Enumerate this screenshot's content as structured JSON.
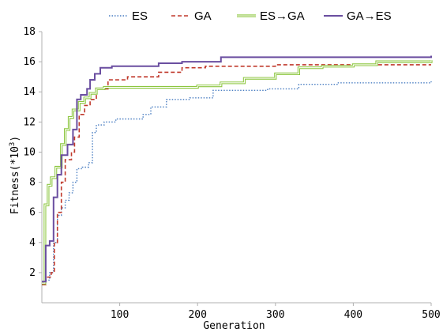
{
  "chart_data": {
    "type": "line",
    "title": "",
    "xlabel": "Generation",
    "ylabel_main": "Fitness(*10",
    "ylabel_sup": "3",
    "ylabel_close": ")",
    "xlim": [
      0,
      500
    ],
    "ylim": [
      0,
      18
    ],
    "xticks": [
      100,
      200,
      300,
      400,
      500
    ],
    "xtick_labels": [
      "100",
      "200",
      "300",
      "400",
      "500"
    ],
    "yticks": [
      2,
      4,
      6,
      8,
      10,
      12,
      14,
      16,
      18
    ],
    "ytick_labels": [
      "2",
      "4",
      "6",
      "8",
      "10",
      "12",
      "14",
      "16",
      "18"
    ],
    "grid": false,
    "legend_position": "top",
    "series": [
      {
        "name": "ES",
        "color": "#4a7ec2",
        "dash": "dotted",
        "points": [
          [
            0,
            1.2
          ],
          [
            5,
            1.5
          ],
          [
            10,
            2.0
          ],
          [
            15,
            4.0
          ],
          [
            20,
            5.8
          ],
          [
            25,
            6.3
          ],
          [
            30,
            6.8
          ],
          [
            35,
            7.3
          ],
          [
            40,
            8.0
          ],
          [
            45,
            8.9
          ],
          [
            52,
            9.0
          ],
          [
            60,
            9.3
          ],
          [
            65,
            11.3
          ],
          [
            70,
            11.8
          ],
          [
            80,
            12.0
          ],
          [
            95,
            12.2
          ],
          [
            130,
            12.5
          ],
          [
            140,
            13.0
          ],
          [
            160,
            13.5
          ],
          [
            190,
            13.6
          ],
          [
            220,
            14.1
          ],
          [
            290,
            14.2
          ],
          [
            330,
            14.5
          ],
          [
            380,
            14.6
          ],
          [
            500,
            14.7
          ]
        ]
      },
      {
        "name": "GA",
        "color": "#c0392b",
        "dash": "dashed",
        "points": [
          [
            0,
            1.2
          ],
          [
            5,
            1.7
          ],
          [
            12,
            2.0
          ],
          [
            16,
            4.0
          ],
          [
            20,
            6.0
          ],
          [
            25,
            8.0
          ],
          [
            30,
            9.5
          ],
          [
            38,
            10.0
          ],
          [
            42,
            11.0
          ],
          [
            48,
            12.5
          ],
          [
            55,
            13.1
          ],
          [
            62,
            13.5
          ],
          [
            70,
            14.2
          ],
          [
            85,
            14.8
          ],
          [
            110,
            15.0
          ],
          [
            150,
            15.3
          ],
          [
            180,
            15.6
          ],
          [
            210,
            15.7
          ],
          [
            300,
            15.8
          ],
          [
            500,
            15.8
          ]
        ]
      },
      {
        "name": "ES→GA",
        "color": "#8cc63f",
        "dash": "double",
        "points": [
          [
            0,
            1.3
          ],
          [
            4,
            6.5
          ],
          [
            8,
            7.8
          ],
          [
            12,
            8.3
          ],
          [
            18,
            9.0
          ],
          [
            25,
            10.5
          ],
          [
            30,
            11.5
          ],
          [
            35,
            12.3
          ],
          [
            40,
            12.8
          ],
          [
            48,
            13.3
          ],
          [
            55,
            13.6
          ],
          [
            62,
            13.9
          ],
          [
            70,
            14.2
          ],
          [
            80,
            14.3
          ],
          [
            150,
            14.3
          ],
          [
            200,
            14.4
          ],
          [
            230,
            14.6
          ],
          [
            260,
            14.9
          ],
          [
            300,
            15.2
          ],
          [
            330,
            15.6
          ],
          [
            360,
            15.7
          ],
          [
            400,
            15.8
          ],
          [
            430,
            16.0
          ],
          [
            500,
            16.1
          ]
        ]
      },
      {
        "name": "GA→ES",
        "color": "#6a4ea0",
        "dash": "solid",
        "points": [
          [
            0,
            1.4
          ],
          [
            5,
            3.8
          ],
          [
            10,
            4.1
          ],
          [
            15,
            7.0
          ],
          [
            20,
            8.5
          ],
          [
            25,
            9.8
          ],
          [
            33,
            10.5
          ],
          [
            40,
            11.5
          ],
          [
            45,
            13.5
          ],
          [
            50,
            13.8
          ],
          [
            58,
            14.2
          ],
          [
            62,
            14.8
          ],
          [
            68,
            15.2
          ],
          [
            75,
            15.6
          ],
          [
            90,
            15.7
          ],
          [
            150,
            15.9
          ],
          [
            180,
            16.0
          ],
          [
            230,
            16.3
          ],
          [
            500,
            16.4
          ]
        ]
      }
    ]
  }
}
